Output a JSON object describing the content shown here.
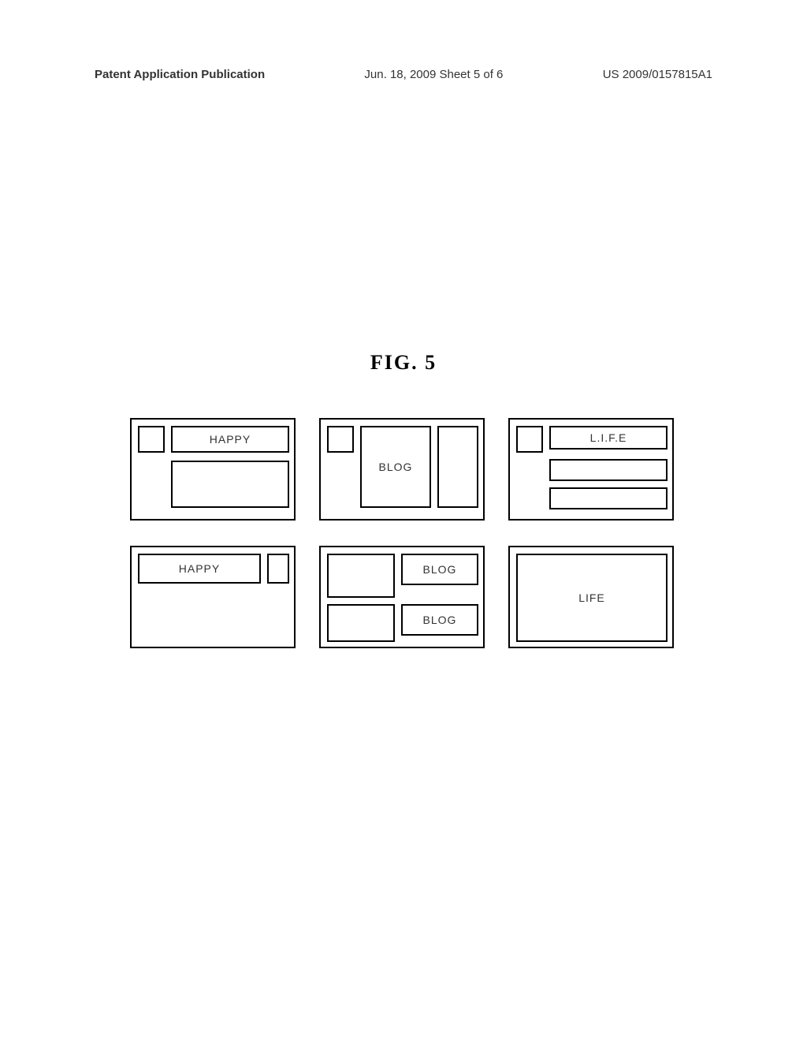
{
  "header": {
    "left": "Patent Application Publication",
    "center": "Jun. 18, 2009  Sheet 5 of 6",
    "right": "US 2009/0157815A1"
  },
  "figure_title": "FIG.  5",
  "panels": {
    "p1": {
      "label": "HAPPY"
    },
    "p2": {
      "label": "BLOG"
    },
    "p3": {
      "label": "L.I.F.E"
    },
    "p4": {
      "label": "HAPPY"
    },
    "p5": {
      "label1": "BLOG",
      "label2": "BLOG"
    },
    "p6": {
      "label": "LIFE"
    }
  },
  "style": {
    "border_color": "#000000",
    "background": "#ffffff",
    "text_color": "#333333",
    "panel_border_width": 2,
    "label_fontsize": 14,
    "title_fontsize": 26
  }
}
